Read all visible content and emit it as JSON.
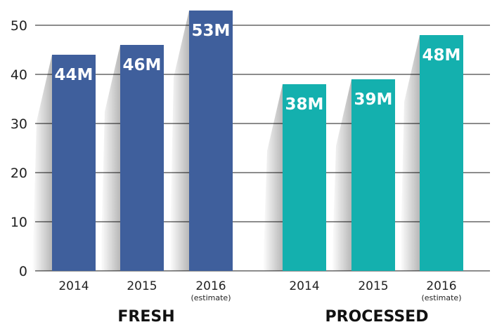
{
  "chart_data": {
    "type": "bar",
    "title": "",
    "xlabel": "",
    "ylabel": "",
    "ylim": [
      0,
      50
    ],
    "yticks": [
      0,
      10,
      20,
      30,
      40,
      50
    ],
    "grid": true,
    "legend": "none",
    "groups": [
      {
        "name": "FRESH",
        "color": "#3F5F9C",
        "bars": [
          {
            "category": "2014",
            "note": "",
            "value": 44,
            "label": "44M"
          },
          {
            "category": "2015",
            "note": "",
            "value": 46,
            "label": "46M"
          },
          {
            "category": "2016",
            "note": "(estimate)",
            "value": 53,
            "label": "53M"
          }
        ]
      },
      {
        "name": "PROCESSED",
        "color": "#14B0AE",
        "bars": [
          {
            "category": "2014",
            "note": "",
            "value": 38,
            "label": "38M"
          },
          {
            "category": "2015",
            "note": "",
            "value": 39,
            "label": "39M"
          },
          {
            "category": "2016",
            "note": "(estimate)",
            "value": 48,
            "label": "48M"
          }
        ]
      }
    ]
  }
}
